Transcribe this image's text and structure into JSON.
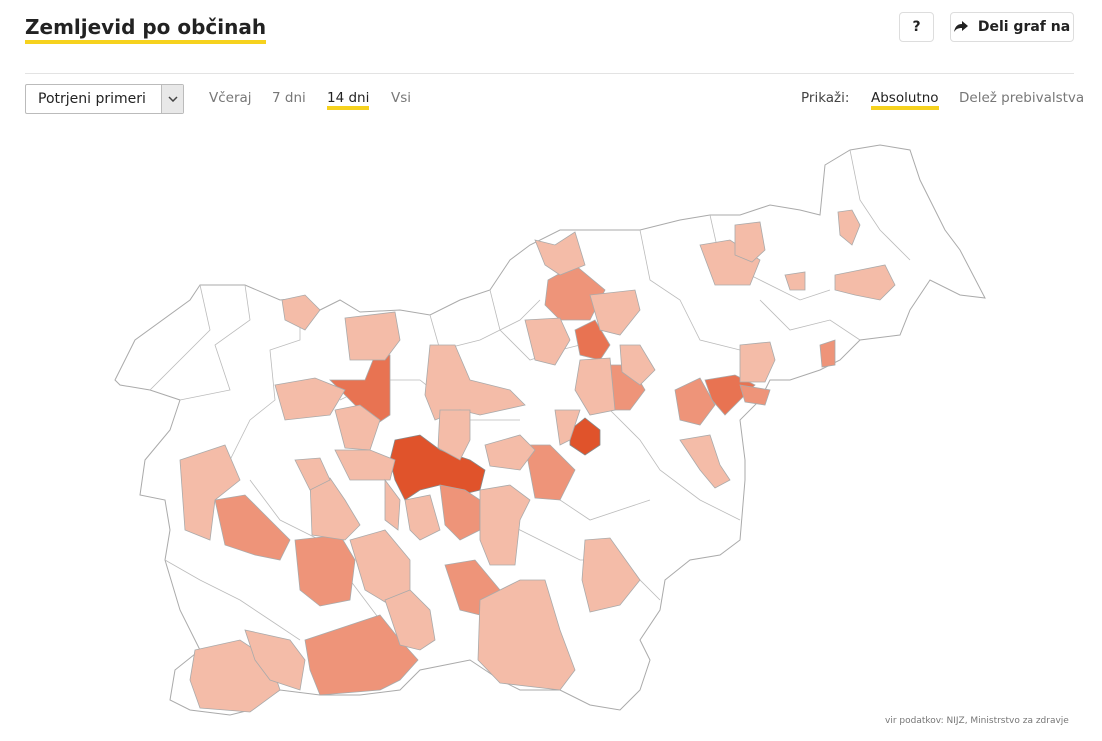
{
  "header": {
    "title": "Zemljevid po občinah",
    "help_button": "?",
    "share_button": "Deli graf na"
  },
  "controls": {
    "dropdown": "Potrjeni primeri",
    "periods": [
      "Včeraj",
      "7 dni",
      "14 dni",
      "Vsi"
    ]
  },
  "display": {
    "label": "Prikaži:",
    "options": [
      "Absolutno",
      "Delež prebivalstva"
    ]
  },
  "source": "vir podatkov: NIJZ, Ministrstvo za zdravje"
}
